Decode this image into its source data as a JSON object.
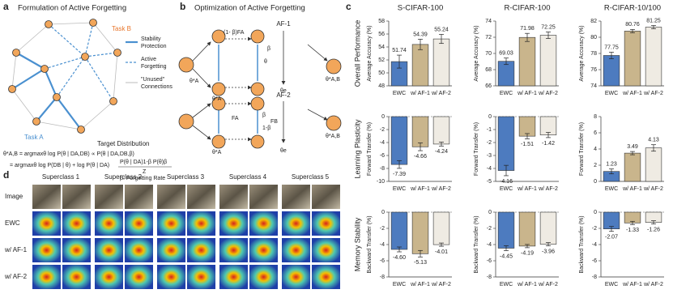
{
  "panel_a": {
    "label": "a",
    "title": "Formulation of Active Forgetting",
    "task_b": "Task B",
    "task_a": "Task A",
    "legend": [
      [
        "Stability",
        "Protection"
      ],
      [
        "Active",
        "Forgetting"
      ],
      [
        "\"Unused\"",
        "Connections"
      ]
    ],
    "target": "Target Distribution",
    "equations": [
      "θ*A,B = argmaxθ log P(θ | DA,DB) ∝ P(θ | DA,DB,β)",
      "= argmaxθ log P(DB | θ) + log P(θ | DA)",
      "P(θ | DA)1-β P(θ)β",
      "Z"
    ],
    "rate": "β: Forgetting Rate"
  },
  "panel_b": {
    "label": "b",
    "title": "Optimization of Active Forgetting",
    "af1": "AF-1",
    "af2": "AF-2",
    "labels": [
      "(1- β)FA",
      "β",
      "θ",
      "θe",
      "θ*A",
      "θ*A,B",
      "FA",
      "β",
      "FB",
      "1-β",
      "θ*A",
      "θe",
      "θ*A",
      "θ*A,B"
    ]
  },
  "panel_d": {
    "label": "d",
    "superclasses": [
      "Superclass 1",
      "Superclass 2",
      "Superclass 3",
      "Superclass 4",
      "Superclass 5"
    ],
    "rows": [
      "Image",
      "EWC",
      "w/ AF-1",
      "w/ AF-2"
    ]
  },
  "panel_c": {
    "label": "c",
    "columns": [
      "S-CIFAR-100",
      "R-CIFAR-100",
      "R-CIFAR-10/100"
    ],
    "rows": [
      "Overall Performance",
      "Learning Plasticity",
      "Memory Stability"
    ]
  },
  "chart_data": [
    {
      "type": "bar",
      "ylabel": "Average Accuracy (%)",
      "categories": [
        "EWC",
        "w/ AF-1",
        "w/ AF-2"
      ],
      "values": [
        51.74,
        54.39,
        55.24
      ],
      "errors": [
        1.0,
        0.8,
        0.7
      ],
      "colors": [
        "#4d7bbf",
        "#c9b58c",
        "#efebe3"
      ],
      "ylim": [
        48,
        58
      ],
      "yticks": [
        48,
        50,
        52,
        54,
        56,
        58
      ]
    },
    {
      "type": "bar",
      "ylabel": "Average Accuracy (%)",
      "categories": [
        "EWC",
        "w/ AF-1",
        "w/ AF-2"
      ],
      "values": [
        69.03,
        71.98,
        72.25
      ],
      "errors": [
        0.4,
        0.5,
        0.4
      ],
      "colors": [
        "#4d7bbf",
        "#c9b58c",
        "#efebe3"
      ],
      "ylim": [
        66,
        74
      ],
      "yticks": [
        66,
        68,
        70,
        72,
        74
      ]
    },
    {
      "type": "bar",
      "ylabel": "Average Accuracy (%)",
      "categories": [
        "EWC",
        "w/ AF-1",
        "w/ AF-2"
      ],
      "values": [
        77.75,
        80.76,
        81.25
      ],
      "errors": [
        0.4,
        0.2,
        0.2
      ],
      "colors": [
        "#4d7bbf",
        "#c9b58c",
        "#efebe3"
      ],
      "ylim": [
        74,
        82
      ],
      "yticks": [
        74,
        76,
        78,
        80,
        82
      ]
    },
    {
      "type": "bar",
      "ylabel": "Forward Transfer (%)",
      "categories": [
        "EWC",
        "w/ AF-1",
        "w/ AF-2"
      ],
      "values": [
        -7.39,
        -4.66,
        -4.24
      ],
      "errors": [
        0.6,
        0.6,
        0.3
      ],
      "colors": [
        "#4d7bbf",
        "#c9b58c",
        "#efebe3"
      ],
      "ylim": [
        -10,
        0
      ],
      "yticks": [
        -10,
        -8,
        -6,
        -4,
        -2,
        0
      ]
    },
    {
      "type": "bar",
      "ylabel": "Forward Transfer (%)",
      "categories": [
        "EWC",
        "w/ AF-1",
        "w/ AF-2"
      ],
      "values": [
        -4.16,
        -1.51,
        -1.42
      ],
      "errors": [
        0.4,
        0.2,
        0.2
      ],
      "colors": [
        "#4d7bbf",
        "#c9b58c",
        "#efebe3"
      ],
      "ylim": [
        -5,
        0
      ],
      "yticks": [
        -5,
        -4,
        -3,
        -2,
        -1,
        0
      ]
    },
    {
      "type": "bar",
      "ylabel": "Forward Transfer (%)",
      "categories": [
        "EWC",
        "w/ AF-1",
        "w/ AF-2"
      ],
      "values": [
        1.23,
        3.49,
        4.13
      ],
      "errors": [
        0.3,
        0.2,
        0.4
      ],
      "colors": [
        "#4d7bbf",
        "#c9b58c",
        "#efebe3"
      ],
      "ylim": [
        0,
        8
      ],
      "yticks": [
        0,
        2,
        4,
        6,
        8
      ]
    },
    {
      "type": "bar",
      "ylabel": "Backward Transfer (%)",
      "categories": [
        "EWC",
        "w/ AF-1",
        "w/ AF-2"
      ],
      "values": [
        -4.6,
        -5.13,
        -4.01
      ],
      "value_labels": [
        "-4.60",
        "-5.13",
        "-4.01"
      ],
      "errors": [
        0.3,
        0.4,
        0.2
      ],
      "colors": [
        "#4d7bbf",
        "#c9b58c",
        "#efebe3"
      ],
      "ylim": [
        -8,
        0
      ],
      "yticks": [
        -8,
        -6,
        -4,
        -2,
        0
      ]
    },
    {
      "type": "bar",
      "ylabel": "Backward Transfer (%)",
      "categories": [
        "EWC",
        "w/ AF-1",
        "w/ AF-2"
      ],
      "values": [
        -4.45,
        -4.19,
        -3.96
      ],
      "errors": [
        0.3,
        0.2,
        0.2
      ],
      "colors": [
        "#4d7bbf",
        "#c9b58c",
        "#efebe3"
      ],
      "ylim": [
        -8,
        0
      ],
      "yticks": [
        -8,
        -6,
        -4,
        -2,
        0
      ]
    },
    {
      "type": "bar",
      "ylabel": "Backward Transfer (%)",
      "categories": [
        "EWC",
        "w/ AF-1",
        "w/ AF-2"
      ],
      "values": [
        -2.07,
        -1.33,
        -1.26
      ],
      "errors": [
        0.3,
        0.2,
        0.2
      ],
      "colors": [
        "#4d7bbf",
        "#c9b58c",
        "#efebe3"
      ],
      "ylim": [
        -8,
        0
      ],
      "yticks": [
        -8,
        -6,
        -4,
        -2,
        0
      ]
    }
  ]
}
